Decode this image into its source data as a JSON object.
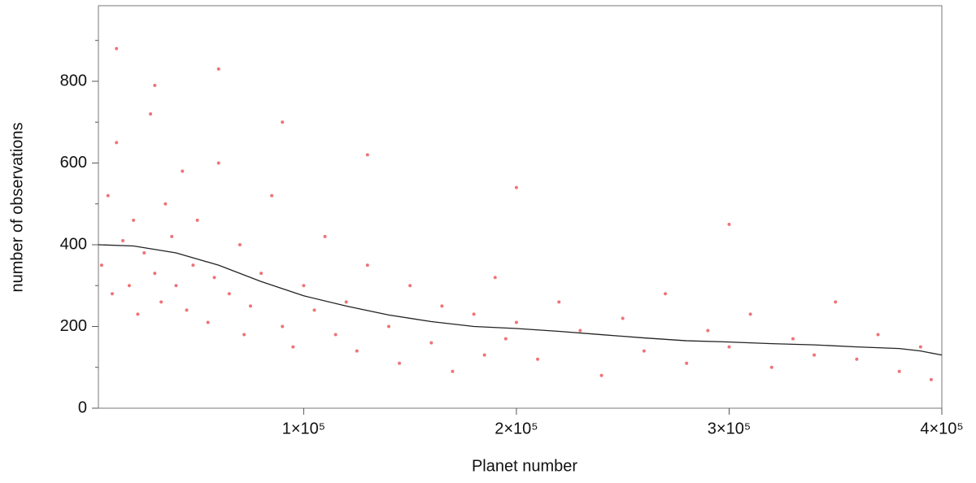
{
  "chart_data": {
    "type": "scatter",
    "xlabel": "Planet number",
    "ylabel": "number of  observations",
    "xlim": [
      3500,
      400000
    ],
    "ylim": [
      0,
      985
    ],
    "xticks": [
      {
        "value": 100000,
        "label": "1×10⁵"
      },
      {
        "value": 200000,
        "label": "2×10⁵"
      },
      {
        "value": 300000,
        "label": "3×10⁵"
      },
      {
        "value": 400000,
        "label": "4×10⁵"
      }
    ],
    "yticks": [
      0,
      200,
      400,
      600,
      800
    ],
    "yminorticks": [
      100,
      300,
      500,
      700,
      900
    ],
    "series": [
      {
        "type": "scatter",
        "color": "#e8383d",
        "x": [
          5000,
          8000,
          10000,
          12000,
          15000,
          18000,
          20000,
          22000,
          25000,
          28000,
          30000,
          33000,
          35000,
          38000,
          40000,
          43000,
          45000,
          48000,
          50000,
          55000,
          58000,
          60000,
          65000,
          70000,
          72000,
          75000,
          80000,
          85000,
          90000,
          95000,
          100000,
          105000,
          110000,
          115000,
          120000,
          125000,
          130000,
          140000,
          145000,
          150000,
          160000,
          165000,
          170000,
          180000,
          185000,
          190000,
          195000,
          200000,
          210000,
          220000,
          230000,
          240000,
          250000,
          260000,
          270000,
          280000,
          290000,
          300000,
          310000,
          320000,
          330000,
          340000,
          350000,
          360000,
          370000,
          380000,
          390000,
          395000,
          12000,
          30000,
          60000,
          90000,
          130000,
          200000,
          300000
        ],
        "values": [
          350,
          520,
          280,
          650,
          410,
          300,
          460,
          230,
          380,
          720,
          330,
          260,
          500,
          420,
          300,
          580,
          240,
          350,
          460,
          210,
          320,
          600,
          280,
          400,
          180,
          250,
          330,
          520,
          200,
          150,
          300,
          240,
          420,
          180,
          260,
          140,
          350,
          200,
          110,
          300,
          160,
          250,
          90,
          230,
          130,
          320,
          170,
          210,
          120,
          260,
          190,
          80,
          220,
          140,
          280,
          110,
          190,
          150,
          230,
          100,
          170,
          130,
          260,
          120,
          180,
          90,
          150,
          70,
          880,
          790,
          830,
          700,
          620,
          540,
          450
        ]
      },
      {
        "type": "line",
        "color": "#222222",
        "x": [
          3500,
          20000,
          40000,
          60000,
          80000,
          100000,
          120000,
          140000,
          160000,
          180000,
          200000,
          220000,
          240000,
          260000,
          280000,
          300000,
          320000,
          340000,
          360000,
          380000,
          390000,
          400000
        ],
        "values": [
          400,
          397,
          380,
          350,
          310,
          275,
          250,
          228,
          212,
          200,
          195,
          188,
          180,
          172,
          165,
          162,
          158,
          155,
          150,
          146,
          140,
          130
        ]
      }
    ]
  }
}
